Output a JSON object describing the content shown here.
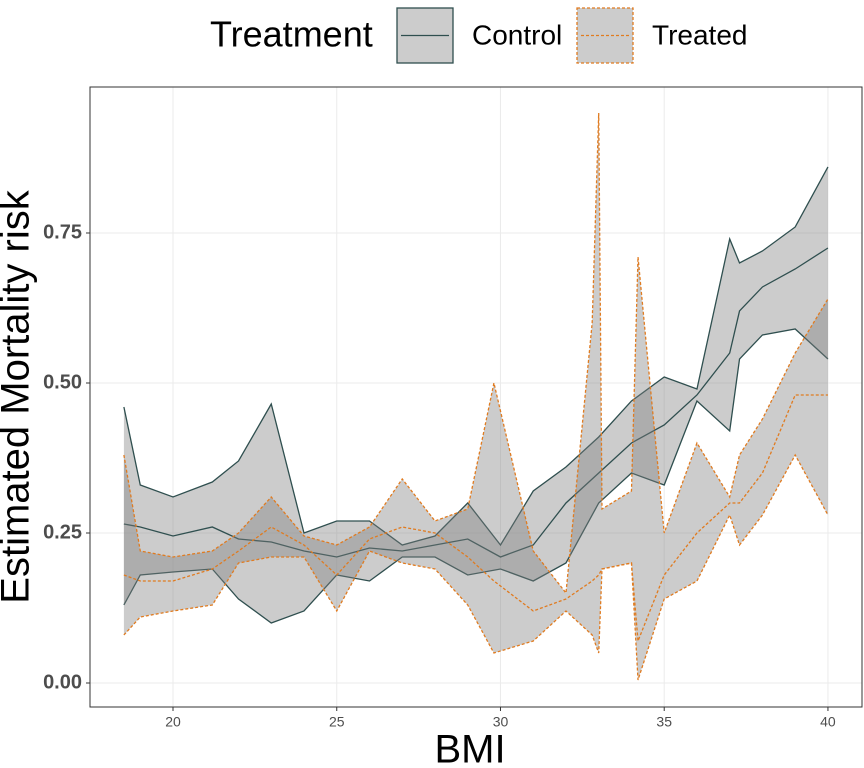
{
  "chart_data": {
    "type": "ribbon",
    "x_label": "BMI",
    "y_label": "Estimated Mortality risk",
    "legend_title": "Treatment",
    "legend_position": "top",
    "grid": true,
    "xlim": [
      17.465,
      41.04
    ],
    "xticks": [
      20,
      25,
      30,
      35,
      40
    ],
    "ylim": [
      -0.04,
      0.9933
    ],
    "yticks": [
      {
        "value": 0,
        "label": "0.00"
      },
      {
        "value": 0.25,
        "label": "0.25"
      },
      {
        "value": 0.5,
        "label": "0.50"
      },
      {
        "value": 0.75,
        "label": "0.75"
      }
    ],
    "fill_color": "#7f7f7f",
    "series": [
      {
        "name": "Control",
        "color": "#2f4f4f",
        "dash": false,
        "x": [
          18.5,
          19,
          20,
          21.2,
          22,
          23,
          24,
          25,
          26,
          27,
          28,
          29,
          30,
          31,
          32,
          33,
          34,
          35,
          36,
          37,
          37.3,
          38,
          39,
          40
        ],
        "values": [
          0.265,
          0.26,
          0.245,
          0.26,
          0.24,
          0.235,
          0.22,
          0.21,
          0.225,
          0.22,
          0.23,
          0.24,
          0.21,
          0.23,
          0.3,
          0.35,
          0.4,
          0.43,
          0.48,
          0.55,
          0.62,
          0.66,
          0.69,
          0.725
        ],
        "lower": [
          0.13,
          0.18,
          0.185,
          0.19,
          0.14,
          0.1,
          0.12,
          0.18,
          0.17,
          0.21,
          0.21,
          0.18,
          0.19,
          0.17,
          0.2,
          0.3,
          0.35,
          0.33,
          0.47,
          0.42,
          0.54,
          0.58,
          0.59,
          0.54
        ],
        "upper": [
          0.46,
          0.33,
          0.31,
          0.335,
          0.37,
          0.465,
          0.25,
          0.27,
          0.27,
          0.23,
          0.245,
          0.3,
          0.23,
          0.32,
          0.36,
          0.41,
          0.47,
          0.51,
          0.49,
          0.74,
          0.7,
          0.72,
          0.76,
          0.86
        ]
      },
      {
        "name": "Treated",
        "color": "#e07b20",
        "dash": true,
        "x": [
          18.5,
          19,
          20,
          21.2,
          22,
          23,
          24,
          25,
          26,
          27,
          28,
          29,
          29.8,
          31,
          32,
          32.8,
          33,
          33.1,
          34,
          34.2,
          35,
          36,
          37,
          37.3,
          38,
          39,
          40
        ],
        "values": [
          0.18,
          0.17,
          0.17,
          0.19,
          0.22,
          0.26,
          0.23,
          0.18,
          0.24,
          0.26,
          0.25,
          0.21,
          0.17,
          0.12,
          0.14,
          0.17,
          0.18,
          0.19,
          0.2,
          0.07,
          0.18,
          0.25,
          0.3,
          0.3,
          0.35,
          0.48,
          0.48
        ],
        "lower": [
          0.08,
          0.11,
          0.12,
          0.13,
          0.2,
          0.21,
          0.21,
          0.12,
          0.22,
          0.2,
          0.19,
          0.13,
          0.05,
          0.07,
          0.12,
          0.08,
          0.05,
          0.19,
          0.2,
          0.005,
          0.14,
          0.17,
          0.28,
          0.23,
          0.28,
          0.38,
          0.28
        ],
        "upper": [
          0.38,
          0.22,
          0.21,
          0.22,
          0.25,
          0.31,
          0.245,
          0.23,
          0.26,
          0.34,
          0.27,
          0.29,
          0.5,
          0.22,
          0.15,
          0.6,
          0.95,
          0.29,
          0.32,
          0.71,
          0.25,
          0.4,
          0.31,
          0.38,
          0.44,
          0.55,
          0.64
        ]
      }
    ]
  }
}
